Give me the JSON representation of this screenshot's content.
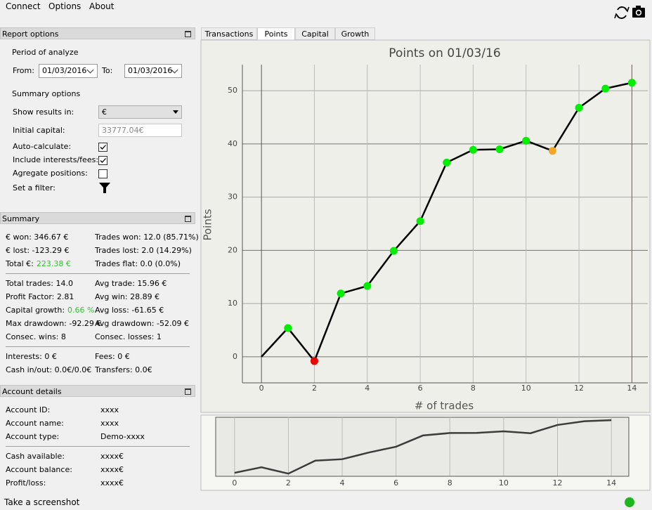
{
  "menu": [
    "Connect",
    "Options",
    "About"
  ],
  "report_options": {
    "title": "Report options",
    "period_label": "Period of analyze",
    "from_label": "From:",
    "from": "01/03/2016",
    "to_label": "To:",
    "to": "01/03/2016",
    "summary_label": "Summary options",
    "show_results_label": "Show results in:",
    "show_results": "€",
    "initial_capital_label": "Initial capital:",
    "initial_capital": "33777.04€",
    "checks": [
      {
        "label": "Auto-calculate:",
        "checked": true
      },
      {
        "label": "Include interests/fees:",
        "checked": true
      },
      {
        "label": "Agregate positions:",
        "checked": false
      }
    ],
    "filter_label": "Set a filter:"
  },
  "summary": {
    "title": "Summary",
    "groups": [
      [
        {
          "left": "€ won: 346.67 €",
          "right": "Trades won: 12.0 (85.71%)"
        },
        {
          "left": "€ lost: -123.29 €",
          "right": "Trades lost: 2.0 (14.29%)"
        },
        {
          "left": "Total €:",
          "left_highlight": "223.38 €",
          "right": "Trades flat: 0.0 (0.0%)"
        }
      ],
      [
        {
          "left": "Total trades: 14.0",
          "right": "Avg trade: 15.96 €"
        },
        {
          "left": "Profit Factor: 2.81",
          "right": "Avg win: 28.89 €"
        },
        {
          "left": "Capital growth:",
          "left_highlight": "0.66 %",
          "right": "Avg loss: -61.65 €"
        },
        {
          "left": "Max drawdown: -92.29 €",
          "right": "Avg drawdown: -52.09 €"
        },
        {
          "left": "Consec. wins: 8",
          "right": "Consec. losses: 1"
        }
      ],
      [
        {
          "left": "Interests: 0 €",
          "right": "Fees: 0 €"
        },
        {
          "left": "Cash in/out: 0.0€/0.0€",
          "right": "Transfers: 0.0€"
        }
      ]
    ]
  },
  "account_details": {
    "title": "Account details",
    "groups": [
      [
        [
          "Account ID:",
          "xxxx"
        ],
        [
          "Account name:",
          "xxxx"
        ],
        [
          "Account type:",
          "Demo-xxxx"
        ]
      ],
      [
        [
          "Cash available:",
          "xxxx€"
        ],
        [
          "Account balance:",
          "xxxx€"
        ],
        [
          "Profit/loss:",
          "xxxx€"
        ]
      ]
    ]
  },
  "tabs": {
    "items": [
      "Transactions",
      "Points",
      "Capital",
      "Growth"
    ],
    "active": 1
  },
  "status": "Take a screenshot",
  "chart_data": [
    {
      "type": "line",
      "title": "Points on 01/03/16",
      "x_label": "# of trades",
      "y_label": "Points",
      "x": [
        0,
        1,
        2,
        3,
        4,
        5,
        6,
        7,
        8,
        9,
        10,
        11,
        12,
        13,
        14
      ],
      "series": [
        {
          "color": "#000000",
          "values": [
            0,
            5.4,
            -0.8,
            11.9,
            13.3,
            19.9,
            25.5,
            36.5,
            38.9,
            39.0,
            40.6,
            38.7,
            46.8,
            50.4,
            51.5
          ],
          "point_colors": [
            null,
            "#00ee00",
            "#ee0000",
            "#00ee00",
            "#00ee00",
            "#00ee00",
            "#00ee00",
            "#00ee00",
            "#00ee00",
            "#00ee00",
            "#00ee00",
            "#f5a623",
            "#00ee00",
            "#00ee00",
            "#00ee00"
          ]
        }
      ],
      "xlim": [
        -0.72,
        14.6
      ],
      "ylim": [
        -4.9,
        54.9
      ],
      "xticks": [
        0,
        2,
        4,
        6,
        8,
        10,
        12,
        14
      ],
      "yticks": [
        0,
        10,
        20,
        30,
        40,
        50
      ],
      "grid": true
    },
    {
      "type": "line",
      "x": [
        0,
        1,
        2,
        3,
        4,
        5,
        6,
        7,
        8,
        9,
        10,
        11,
        12,
        13,
        14
      ],
      "series": [
        {
          "color": "#3c3c3c",
          "values": [
            0,
            5.4,
            -0.8,
            11.9,
            13.3,
            19.9,
            25.5,
            36.5,
            38.9,
            39.0,
            40.6,
            38.7,
            46.8,
            50.4,
            51.5
          ]
        }
      ],
      "xlim": [
        -0.7,
        14.65
      ],
      "ylim": [
        -3.4,
        54.3
      ],
      "xticks": [
        0,
        2,
        4,
        6,
        8,
        10,
        12,
        14
      ],
      "grid": true
    }
  ]
}
